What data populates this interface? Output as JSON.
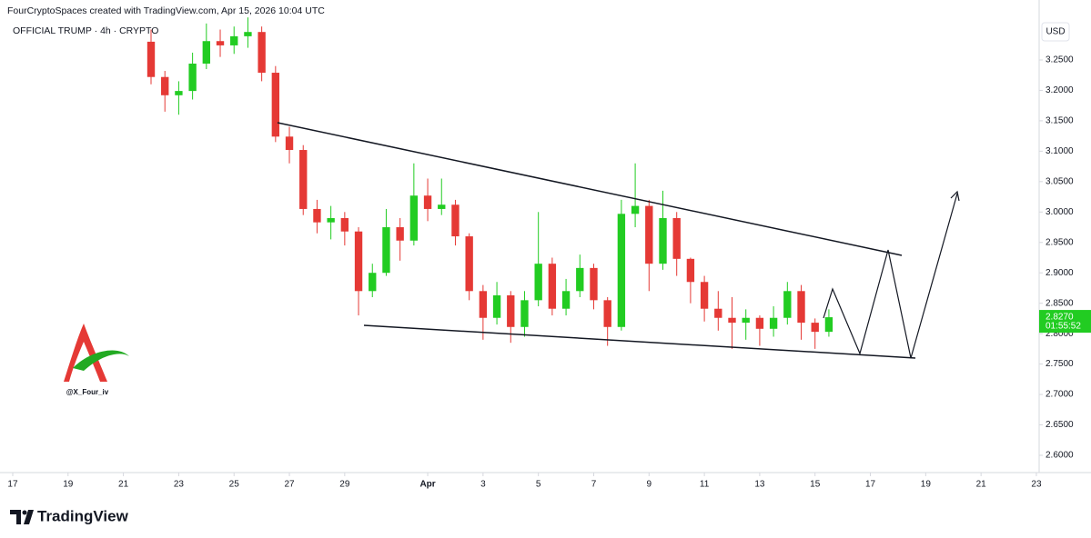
{
  "header": {
    "credit": "FourCryptoSpaces created with TradingView.com, Apr 15, 2026 10:04 UTC",
    "symbol": "OFFICIAL TRUMP · 4h · CRYPTO"
  },
  "watermark": "@X_Four_iv",
  "footer": {
    "brand": "TradingView"
  },
  "chart_data": {
    "type": "candlestick",
    "currency": "USD",
    "up_color": "#22cc22",
    "down_color": "#e53935",
    "grid": false,
    "xlim": [
      -0.46,
      37.1
    ],
    "ylim": [
      2.5716,
      3.3486
    ],
    "xticks": [
      {
        "value": 0,
        "label": "17"
      },
      {
        "value": 2,
        "label": "19"
      },
      {
        "value": 4,
        "label": "21"
      },
      {
        "value": 6,
        "label": "23"
      },
      {
        "value": 8,
        "label": "25"
      },
      {
        "value": 10,
        "label": "27"
      },
      {
        "value": 12,
        "label": "29"
      },
      {
        "value": 15,
        "label": "Apr"
      },
      {
        "value": 17,
        "label": "3"
      },
      {
        "value": 19,
        "label": "5"
      },
      {
        "value": 21,
        "label": "7"
      },
      {
        "value": 23,
        "label": "9"
      },
      {
        "value": 25,
        "label": "11"
      },
      {
        "value": 27,
        "label": "13"
      },
      {
        "value": 29,
        "label": "15"
      },
      {
        "value": 31,
        "label": "17"
      },
      {
        "value": 33,
        "label": "19"
      },
      {
        "value": 35,
        "label": "21"
      },
      {
        "value": 37,
        "label": "23"
      }
    ],
    "yticks": [
      {
        "value": 2.6,
        "label": "2.6000"
      },
      {
        "value": 2.65,
        "label": "2.6500"
      },
      {
        "value": 2.7,
        "label": "2.7000"
      },
      {
        "value": 2.75,
        "label": "2.7500"
      },
      {
        "value": 2.8,
        "label": "2.8000"
      },
      {
        "value": 2.85,
        "label": "2.8500"
      },
      {
        "value": 2.9,
        "label": "2.9000"
      },
      {
        "value": 2.95,
        "label": "2.9500"
      },
      {
        "value": 3.0,
        "label": "3.0000"
      },
      {
        "value": 3.05,
        "label": "3.0500"
      },
      {
        "value": 3.1,
        "label": "3.1000"
      },
      {
        "value": 3.15,
        "label": "3.1500"
      },
      {
        "value": 3.2,
        "label": "3.2000"
      },
      {
        "value": 3.25,
        "label": "3.2500"
      }
    ],
    "x": [
      5,
      5.5,
      6,
      6.5,
      7,
      7.5,
      8,
      8.5,
      9,
      9.5,
      10,
      10.5,
      11,
      11.5,
      12,
      12.5,
      13,
      13.5,
      14,
      14.5,
      15,
      15.5,
      16,
      16.5,
      17,
      17.5,
      18,
      18.5,
      19,
      19.5,
      20,
      20.5,
      21,
      21.5,
      22,
      22.5,
      23,
      23.5,
      24,
      24.5,
      25,
      25.5,
      26,
      26.5,
      27,
      27.5,
      28,
      28.5,
      29,
      29.5
    ],
    "open": [
      3.28,
      3.222,
      3.192,
      3.199,
      3.244,
      3.281,
      3.274,
      3.289,
      3.296,
      3.229,
      3.124,
      3.102,
      3.005,
      2.983,
      2.99,
      2.968,
      2.87,
      2.9,
      2.975,
      2.953,
      3.027,
      3.005,
      3.012,
      2.96,
      2.87,
      2.826,
      2.863,
      2.811,
      2.855,
      2.915,
      2.841,
      2.87,
      2.908,
      2.855,
      2.811,
      2.997,
      3.01,
      2.915,
      2.99,
      2.923,
      2.885,
      2.841,
      2.826,
      2.818,
      2.826,
      2.808,
      2.826,
      2.87,
      2.818,
      2.803
    ],
    "high": [
      3.3,
      3.232,
      3.215,
      3.262,
      3.31,
      3.3,
      3.305,
      3.32,
      3.305,
      3.24,
      3.14,
      3.11,
      3.02,
      3.01,
      3.0,
      2.975,
      2.915,
      3.005,
      2.99,
      3.08,
      3.055,
      3.055,
      3.02,
      2.965,
      2.88,
      2.885,
      2.87,
      2.87,
      3.0,
      2.925,
      2.89,
      2.93,
      2.915,
      2.86,
      3.02,
      3.08,
      3.02,
      3.035,
      3.0,
      2.925,
      2.895,
      2.87,
      2.86,
      2.84,
      2.83,
      2.845,
      2.885,
      2.88,
      2.825,
      2.84
    ],
    "low": [
      3.21,
      3.165,
      3.16,
      3.185,
      3.235,
      3.255,
      3.26,
      3.27,
      3.215,
      3.115,
      3.08,
      2.995,
      2.965,
      2.955,
      2.945,
      2.83,
      2.86,
      2.895,
      2.92,
      2.945,
      2.985,
      2.995,
      2.945,
      2.855,
      2.79,
      2.815,
      2.785,
      2.795,
      2.845,
      2.83,
      2.83,
      2.86,
      2.84,
      2.78,
      2.805,
      2.975,
      2.87,
      2.905,
      2.895,
      2.85,
      2.82,
      2.805,
      2.775,
      2.79,
      2.78,
      2.795,
      2.815,
      2.79,
      2.775,
      2.795
    ],
    "close": [
      3.222,
      3.192,
      3.199,
      3.244,
      3.281,
      3.274,
      3.289,
      3.296,
      3.229,
      3.124,
      3.102,
      3.005,
      2.983,
      2.99,
      2.968,
      2.87,
      2.9,
      2.975,
      2.953,
      3.027,
      3.005,
      3.012,
      2.96,
      2.87,
      2.826,
      2.863,
      2.811,
      2.855,
      2.915,
      2.841,
      2.87,
      2.908,
      2.855,
      2.811,
      2.997,
      3.01,
      2.915,
      2.99,
      2.923,
      2.885,
      2.841,
      2.826,
      2.818,
      2.826,
      2.808,
      2.826,
      2.87,
      2.818,
      2.803,
      2.827
    ],
    "last_price": {
      "value": 2.827,
      "label": "2.8270"
    },
    "countdown": "01:55:52"
  }
}
